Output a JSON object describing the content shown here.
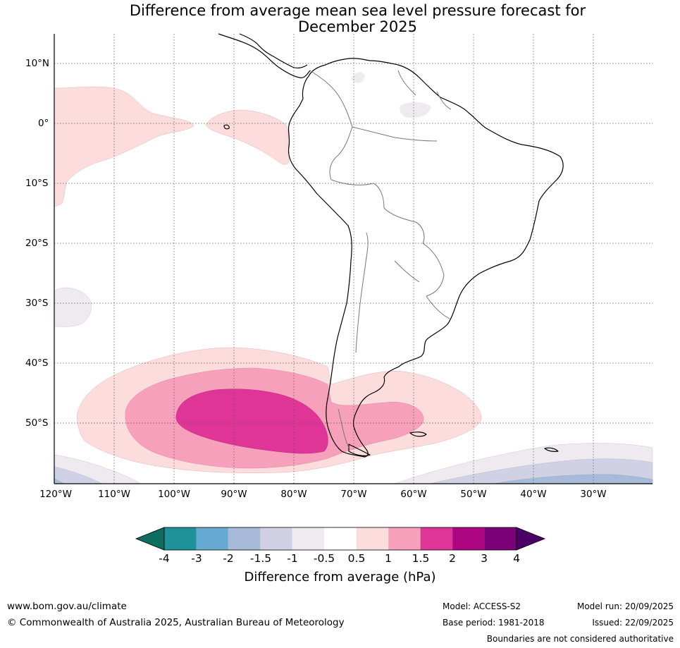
{
  "title": {
    "line1": "Difference from average mean sea level pressure forecast for",
    "line2": "December 2025"
  },
  "map": {
    "lat_labels": [
      "10°N",
      "0°",
      "10°S",
      "20°S",
      "30°S",
      "40°S",
      "50°S"
    ],
    "lat_values": [
      10,
      0,
      -10,
      -20,
      -30,
      -40,
      -50
    ],
    "lon_labels": [
      "120°W",
      "110°W",
      "100°W",
      "90°W",
      "80°W",
      "70°W",
      "60°W",
      "50°W",
      "40°W",
      "30°W"
    ],
    "lon_values": [
      -120,
      -110,
      -100,
      -90,
      -80,
      -70,
      -60,
      -50,
      -40,
      -30
    ],
    "extent": {
      "lon_min": -120,
      "lon_max": -20,
      "lat_min": -60,
      "lat_max": 15
    },
    "anomaly_regions": [
      {
        "name": "equatorial-pacific-positive",
        "band": "0.5 to 1",
        "color": "#fcdcdc"
      },
      {
        "name": "southern-ocean-positive-weak",
        "band": "0.5 to 1",
        "color": "#fcdcdc"
      },
      {
        "name": "southern-ocean-positive-moderate",
        "band": "1 to 1.5",
        "color": "#f7a0bc"
      },
      {
        "name": "southern-ocean-positive-strong",
        "band": "1.5 to 2",
        "color": "#de3597"
      },
      {
        "name": "southeast-pacific-negative-weak",
        "band": "-1 to -0.5",
        "color": "#eeeaf0"
      },
      {
        "name": "south-atlantic-negative",
        "band": "-1.5 to -1",
        "color": "#d1d1e6"
      },
      {
        "name": "south-atlantic-negative-strong",
        "band": "-2 to -1.5",
        "color": "#a7bbd8"
      }
    ]
  },
  "colorbar": {
    "label": "Difference from average (hPa)",
    "ticks": [
      "-4",
      "-3",
      "-2",
      "-1.5",
      "-1",
      "-0.5",
      "0.5",
      "1",
      "1.5",
      "2",
      "3",
      "4"
    ],
    "colors": [
      "#0d6d5e",
      "#1f9199",
      "#67aad1",
      "#a7bbd8",
      "#d1d1e6",
      "#eeeaf0",
      "#ffffff",
      "#fcdcdc",
      "#f7a0bc",
      "#de3597",
      "#ae0580",
      "#7a0177",
      "#4b0066"
    ]
  },
  "footer": {
    "website": "www.bom.gov.au/climate",
    "copyright": "© Commonwealth of Australia 2025, Australian Bureau of Meteorology",
    "model": "Model: ACCESS-S2",
    "base_period": "Base period: 1981-2018",
    "model_run": "Model run: 20/09/2025",
    "issued": "Issued: 22/09/2025",
    "disclaimer": "Boundaries are not considered authoritative"
  }
}
